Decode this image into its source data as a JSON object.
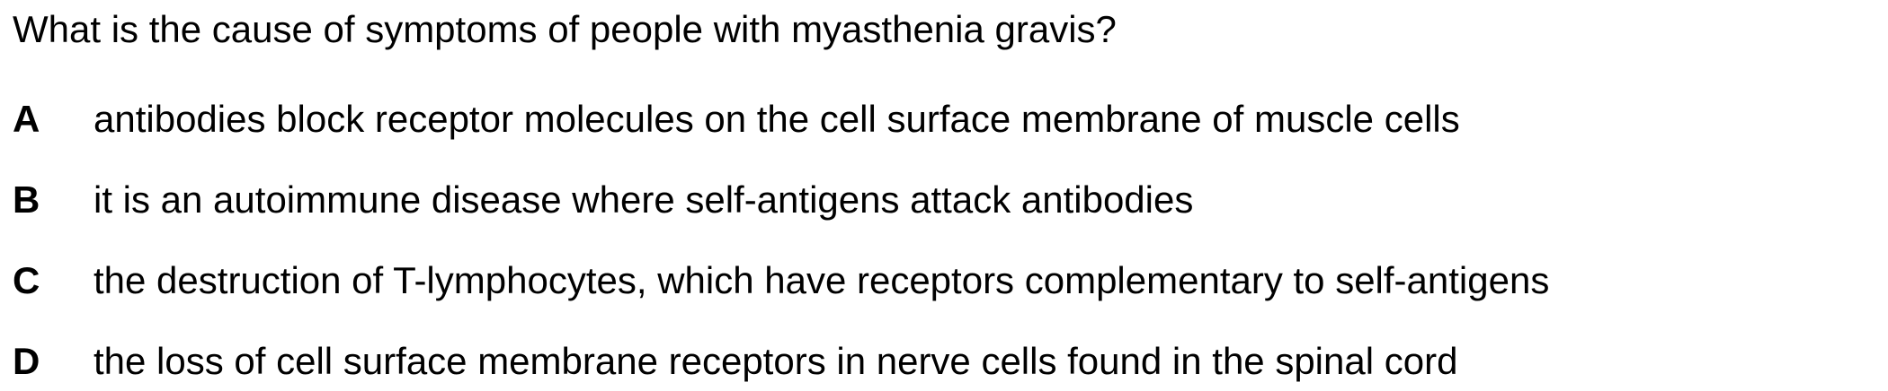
{
  "question": {
    "text": "What is the cause of symptoms of people with myasthenia gravis?"
  },
  "options": [
    {
      "letter": "A",
      "text": "antibodies block receptor molecules on the cell surface membrane of muscle cells"
    },
    {
      "letter": "B",
      "text": "it is an autoimmune disease where self-antigens attack antibodies"
    },
    {
      "letter": "C",
      "text": "the destruction of T-lymphocytes, which have receptors complementary to self-antigens"
    },
    {
      "letter": "D",
      "text": "the loss of cell surface membrane receptors in nerve cells found in the spinal cord"
    }
  ]
}
